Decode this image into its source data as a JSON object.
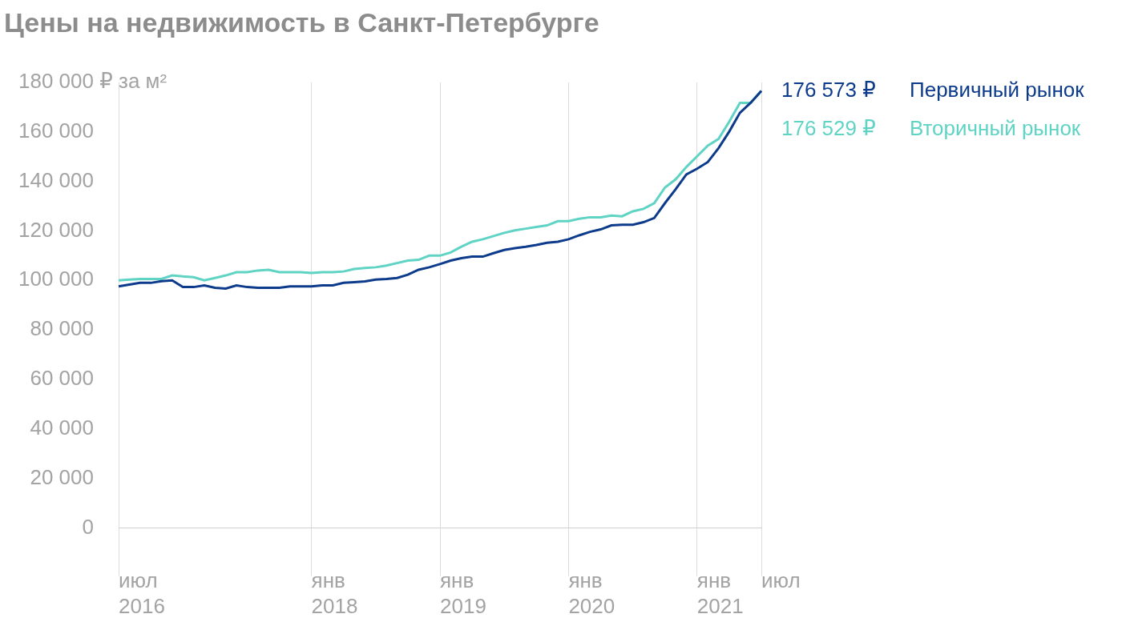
{
  "chart_data": {
    "type": "line",
    "title": "Цены на недвижимость в Санкт-Петербурге",
    "categories": [
      "июл 2016",
      null,
      null,
      null,
      null,
      null,
      null,
      null,
      null,
      null,
      null,
      null,
      null,
      null,
      null,
      null,
      null,
      null,
      "янв 2018",
      null,
      null,
      null,
      null,
      null,
      null,
      null,
      null,
      null,
      null,
      null,
      "янв 2019",
      null,
      null,
      null,
      null,
      null,
      null,
      null,
      null,
      null,
      null,
      null,
      "янв 2020",
      null,
      null,
      null,
      null,
      null,
      null,
      null,
      null,
      null,
      null,
      null,
      "янв 2021",
      null,
      null,
      null,
      null,
      null,
      "июл"
    ],
    "series": [
      {
        "name": "Первичный рынок",
        "color": "#0d3b8c",
        "values": [
          97600,
          98300,
          99000,
          99000,
          99700,
          100000,
          97300,
          97300,
          98000,
          97000,
          96700,
          98000,
          97300,
          97000,
          97000,
          97000,
          97600,
          97600,
          97600,
          98000,
          98000,
          99000,
          99300,
          99600,
          100300,
          100600,
          101000,
          102300,
          104300,
          105300,
          106600,
          108000,
          109000,
          109600,
          109600,
          111000,
          112300,
          113000,
          113600,
          114300,
          115200,
          115600,
          116600,
          118200,
          119600,
          120600,
          122200,
          122500,
          122500,
          123500,
          125200,
          131200,
          136800,
          142800,
          145100,
          147800,
          153400,
          160100,
          167700,
          171700,
          176573
        ],
        "value_labels": [
          null,
          null,
          null,
          null,
          null,
          null,
          null,
          null,
          null,
          null,
          null,
          null,
          null,
          null,
          null,
          null,
          null,
          null,
          null,
          null,
          null,
          null,
          null,
          null,
          null,
          null,
          null,
          null,
          null,
          null,
          null,
          null,
          null,
          null,
          null,
          null,
          null,
          null,
          null,
          null,
          null,
          null,
          null,
          null,
          null,
          null,
          null,
          null,
          null,
          null,
          null,
          null,
          null,
          null,
          null,
          null,
          null,
          null,
          null,
          null,
          "176 573 ₽"
        ]
      },
      {
        "name": "Вторичный рынок",
        "color": "#5fd3c4",
        "values": [
          100000,
          100300,
          100600,
          100600,
          100600,
          102000,
          101600,
          101300,
          100000,
          101000,
          102000,
          103300,
          103300,
          104000,
          104300,
          103300,
          103300,
          103300,
          103000,
          103300,
          103300,
          103600,
          104600,
          105000,
          105300,
          106000,
          107000,
          108000,
          108300,
          110000,
          110000,
          111300,
          113600,
          115600,
          116600,
          117900,
          119200,
          120200,
          120900,
          121600,
          122200,
          123900,
          123900,
          124900,
          125500,
          125500,
          126200,
          125900,
          127900,
          128900,
          131200,
          137500,
          140800,
          145800,
          150100,
          154400,
          157100,
          164100,
          171700,
          171700,
          176529
        ],
        "value_labels": [
          null,
          null,
          null,
          null,
          null,
          null,
          null,
          null,
          null,
          null,
          null,
          null,
          null,
          null,
          null,
          null,
          null,
          null,
          null,
          null,
          null,
          null,
          null,
          null,
          null,
          null,
          null,
          null,
          null,
          null,
          null,
          null,
          null,
          null,
          null,
          null,
          null,
          null,
          null,
          null,
          null,
          null,
          null,
          null,
          null,
          null,
          null,
          null,
          null,
          null,
          null,
          null,
          null,
          null,
          null,
          null,
          null,
          null,
          null,
          null,
          "176 529 ₽"
        ]
      }
    ],
    "ylim": [
      0,
      180000
    ],
    "yticks": [
      0,
      {
        "value": 20000,
        "label": "20 000"
      },
      {
        "value": 40000,
        "label": "40 000"
      },
      {
        "value": 60000,
        "label": "60 000"
      },
      {
        "value": 80000,
        "label": "80 000"
      },
      {
        "value": 100000,
        "label": "100 000"
      },
      {
        "value": 120000,
        "label": "120 000"
      },
      {
        "value": 140000,
        "label": "140 000"
      },
      {
        "value": 160000,
        "label": "160 000"
      },
      {
        "value": 180000,
        "label": "180 000 ₽ за м²"
      }
    ],
    "grid": true,
    "legend": "right"
  }
}
